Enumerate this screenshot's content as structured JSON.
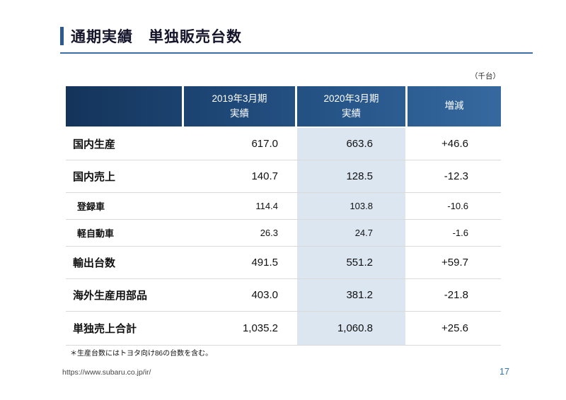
{
  "slide": {
    "title": "通期実績　単独販売台数",
    "unit_note": "（千台）",
    "footnote": "＊生産台数にはトヨタ向け86の台数を含む。",
    "footer_url": "https://www.subaru.co.jp/ir/",
    "page_number": "17"
  },
  "table": {
    "headers": {
      "label": "",
      "y2019_line1": "2019年3月期",
      "y2019_line2": "実績",
      "y2020_line1": "2020年3月期",
      "y2020_line2": "実績",
      "diff": "増減"
    },
    "rows": [
      {
        "label": "国内生産",
        "y2019": "617.0",
        "y2020": "663.6",
        "diff": "+46.6"
      },
      {
        "label": "国内売上",
        "y2019": "140.7",
        "y2020": "128.5",
        "diff": "-12.3"
      },
      {
        "label": "登録車",
        "y2019": "114.4",
        "y2020": "103.8",
        "diff": "-10.6"
      },
      {
        "label": "軽自動車",
        "y2019": "26.3",
        "y2020": "24.7",
        "diff": "-1.6"
      },
      {
        "label": "輸出台数",
        "y2019": "491.5",
        "y2020": "551.2",
        "diff": "+59.7"
      },
      {
        "label": "海外生産用部品",
        "y2019": "403.0",
        "y2020": "381.2",
        "diff": "-21.8"
      },
      {
        "label": "単独売上合計",
        "y2019": "1,035.2",
        "y2020": "1,060.8",
        "diff": "+25.6"
      }
    ]
  }
}
